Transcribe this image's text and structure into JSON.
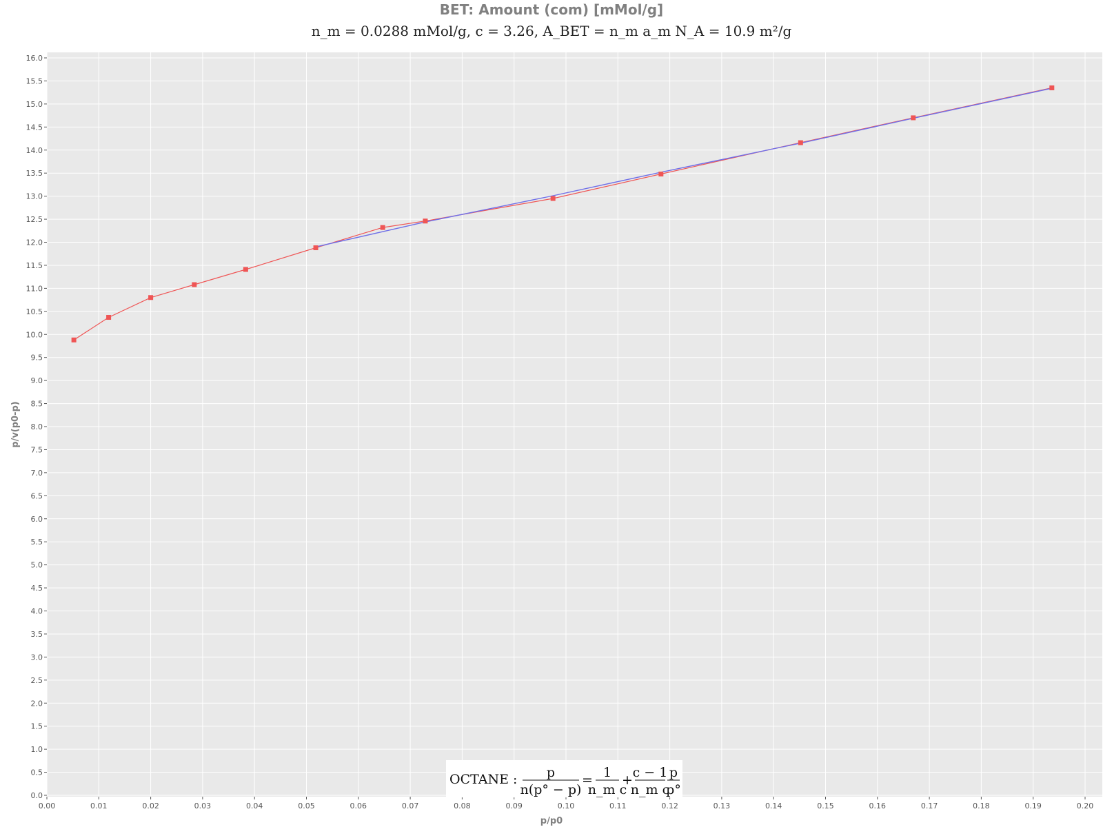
{
  "chart_data": {
    "type": "line",
    "title": "BET: Amount (com) [mMol/g]",
    "subtitle": "n_m = 0.0288 mMol/g,  c = 3.26,  A_BET = n_m a_m N_A = 10.9 m²/g",
    "xlabel": "p/p0",
    "ylabel": "p/v(p0-p)",
    "xlim": [
      0.0,
      0.2
    ],
    "ylim": [
      0.0,
      16.0
    ],
    "xticks": [
      "0.00",
      "0.01",
      "0.02",
      "0.03",
      "0.04",
      "0.05",
      "0.06",
      "0.07",
      "0.08",
      "0.09",
      "0.10",
      "0.11",
      "0.12",
      "0.13",
      "0.14",
      "0.15",
      "0.16",
      "0.17",
      "0.18",
      "0.19",
      "0.20"
    ],
    "yticks": [
      "0.0",
      "0.5",
      "1.0",
      "1.5",
      "2.0",
      "2.5",
      "3.0",
      "3.5",
      "4.0",
      "4.5",
      "5.0",
      "5.5",
      "6.0",
      "6.5",
      "7.0",
      "7.5",
      "8.0",
      "8.5",
      "9.0",
      "9.5",
      "10.0",
      "10.5",
      "11.0",
      "11.5",
      "12.0",
      "12.5",
      "13.0",
      "13.5",
      "14.0",
      "14.5",
      "15.0",
      "15.5",
      "16.0"
    ],
    "grid": true,
    "colors": {
      "data": "#ef5555",
      "fit": "#6f6fe8",
      "background": "#e9e9e9",
      "grid": "#ffffff"
    },
    "series": [
      {
        "role": "data",
        "marker": "square",
        "x": [
          0.0052,
          0.0119,
          0.02,
          0.0284,
          0.0383,
          0.0518,
          0.0647,
          0.0729,
          0.0975,
          0.1183,
          0.1452,
          0.1669,
          0.1936
        ],
        "y": [
          9.88,
          10.37,
          10.8,
          11.08,
          11.41,
          11.88,
          12.32,
          12.46,
          12.95,
          13.48,
          14.16,
          14.7,
          15.35
        ]
      },
      {
        "role": "fit",
        "x": [
          0.0518,
          0.0729,
          0.0975,
          0.1183,
          0.1452,
          0.1669,
          0.1936
        ],
        "y": [
          11.9,
          12.44,
          13.01,
          13.52,
          14.15,
          14.69,
          15.34
        ]
      }
    ],
    "annotation": {
      "prefix": "OCTANE :",
      "lhs_num": "p",
      "lhs_den": "n(p° − p)",
      "eq": "=",
      "t1_num": "1",
      "t1_den": "n_m c",
      "plus": "+",
      "t2_num": "c − 1",
      "t2_den": "n_m c",
      "t3_num": "p",
      "t3_den": "p°"
    }
  }
}
